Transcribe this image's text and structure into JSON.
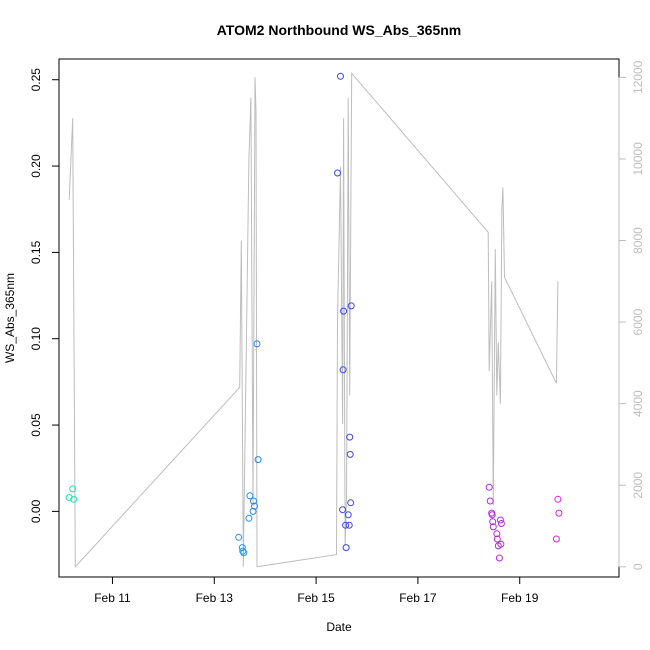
{
  "chart_data": {
    "type": "scatter",
    "title": "ATOM2 Northbound WS_Abs_365nm",
    "xlabel": "Date",
    "ylabel": "WS_Abs_365nm",
    "xlim": [
      9.95,
      20.95
    ],
    "ylim": [
      -0.038,
      0.262
    ],
    "x_ticks": [
      11,
      13,
      15,
      17,
      19
    ],
    "x_tick_labels": [
      "Feb 11",
      "Feb 13",
      "Feb 15",
      "Feb 17",
      "Feb 19"
    ],
    "y_ticks": [
      0.0,
      0.05,
      0.1,
      0.15,
      0.2,
      0.25
    ],
    "y_tick_labels": [
      "0.00",
      "0.05",
      "0.10",
      "0.15",
      "0.20",
      "0.25"
    ],
    "y2lim": [
      -250,
      12450
    ],
    "y2_ticks": [
      0,
      2000,
      4000,
      6000,
      8000,
      10000,
      12000
    ],
    "y2_tick_labels": [
      "0",
      "2000",
      "4000",
      "6000",
      "8000",
      "10000",
      "12000"
    ],
    "grid": false,
    "colors": {
      "line": "#bdbdbd",
      "right_axis": "#bdbdbd",
      "color_ramp": [
        "#22e6a6",
        "#22c8e6",
        "#1e4ef2",
        "#8a2ee6",
        "#e61ee6"
      ]
    },
    "points": [
      {
        "x": 10.15,
        "y": 0.008
      },
      {
        "x": 10.22,
        "y": 0.013
      },
      {
        "x": 10.24,
        "y": 0.007
      },
      {
        "x": 13.48,
        "y": -0.015
      },
      {
        "x": 13.55,
        "y": -0.021
      },
      {
        "x": 13.56,
        "y": -0.023
      },
      {
        "x": 13.58,
        "y": -0.024
      },
      {
        "x": 13.68,
        "y": -0.004
      },
      {
        "x": 13.7,
        "y": 0.009
      },
      {
        "x": 13.76,
        "y": 0.0
      },
      {
        "x": 13.77,
        "y": 0.006
      },
      {
        "x": 13.79,
        "y": 0.003
      },
      {
        "x": 13.84,
        "y": 0.097
      },
      {
        "x": 13.86,
        "y": 0.03
      },
      {
        "x": 15.42,
        "y": 0.196
      },
      {
        "x": 15.48,
        "y": 0.252
      },
      {
        "x": 15.52,
        "y": 0.001
      },
      {
        "x": 15.53,
        "y": 0.082
      },
      {
        "x": 15.54,
        "y": 0.116
      },
      {
        "x": 15.58,
        "y": -0.008
      },
      {
        "x": 15.59,
        "y": -0.021
      },
      {
        "x": 15.63,
        "y": -0.002
      },
      {
        "x": 15.65,
        "y": -0.008
      },
      {
        "x": 15.66,
        "y": 0.043
      },
      {
        "x": 15.67,
        "y": 0.033
      },
      {
        "x": 15.68,
        "y": 0.005
      },
      {
        "x": 15.69,
        "y": 0.119
      },
      {
        "x": 18.4,
        "y": 0.014
      },
      {
        "x": 18.42,
        "y": 0.006
      },
      {
        "x": 18.45,
        "y": -0.001
      },
      {
        "x": 18.46,
        "y": -0.002
      },
      {
        "x": 18.47,
        "y": -0.006
      },
      {
        "x": 18.48,
        "y": -0.009
      },
      {
        "x": 18.55,
        "y": -0.013
      },
      {
        "x": 18.56,
        "y": -0.016
      },
      {
        "x": 18.58,
        "y": -0.02
      },
      {
        "x": 18.6,
        "y": -0.027
      },
      {
        "x": 18.62,
        "y": -0.005
      },
      {
        "x": 18.63,
        "y": -0.019
      },
      {
        "x": 18.64,
        "y": -0.007
      },
      {
        "x": 19.72,
        "y": -0.016
      },
      {
        "x": 19.75,
        "y": 0.007
      },
      {
        "x": 19.77,
        "y": -0.001
      }
    ],
    "line": [
      {
        "x": 10.15,
        "y2": 9000
      },
      {
        "x": 10.22,
        "y2": 11000
      },
      {
        "x": 10.27,
        "y2": 0
      },
      {
        "x": 13.5,
        "y2": 4400
      },
      {
        "x": 13.53,
        "y2": 8000
      },
      {
        "x": 13.57,
        "y2": 0
      },
      {
        "x": 13.68,
        "y2": 10000
      },
      {
        "x": 13.72,
        "y2": 11500
      },
      {
        "x": 13.76,
        "y2": 1500
      },
      {
        "x": 13.8,
        "y2": 12000
      },
      {
        "x": 13.82,
        "y2": 11200
      },
      {
        "x": 13.84,
        "y2": 0
      },
      {
        "x": 15.4,
        "y2": 300
      },
      {
        "x": 15.42,
        "y2": 6000
      },
      {
        "x": 15.48,
        "y2": 9800
      },
      {
        "x": 15.52,
        "y2": 3500
      },
      {
        "x": 15.54,
        "y2": 11000
      },
      {
        "x": 15.57,
        "y2": 500
      },
      {
        "x": 15.6,
        "y2": 1800
      },
      {
        "x": 15.63,
        "y2": 11500
      },
      {
        "x": 15.66,
        "y2": 4200
      },
      {
        "x": 15.7,
        "y2": 12100
      },
      {
        "x": 18.38,
        "y2": 8200
      },
      {
        "x": 18.4,
        "y2": 4800
      },
      {
        "x": 18.45,
        "y2": 7000
      },
      {
        "x": 18.48,
        "y2": 1500
      },
      {
        "x": 18.52,
        "y2": 7800
      },
      {
        "x": 18.55,
        "y2": 4200
      },
      {
        "x": 18.58,
        "y2": 5500
      },
      {
        "x": 18.62,
        "y2": 4000
      },
      {
        "x": 18.65,
        "y2": 8800
      },
      {
        "x": 18.67,
        "y2": 9300
      },
      {
        "x": 18.7,
        "y2": 7100
      },
      {
        "x": 19.72,
        "y2": 4500
      },
      {
        "x": 19.75,
        "y2": 7000
      }
    ]
  }
}
